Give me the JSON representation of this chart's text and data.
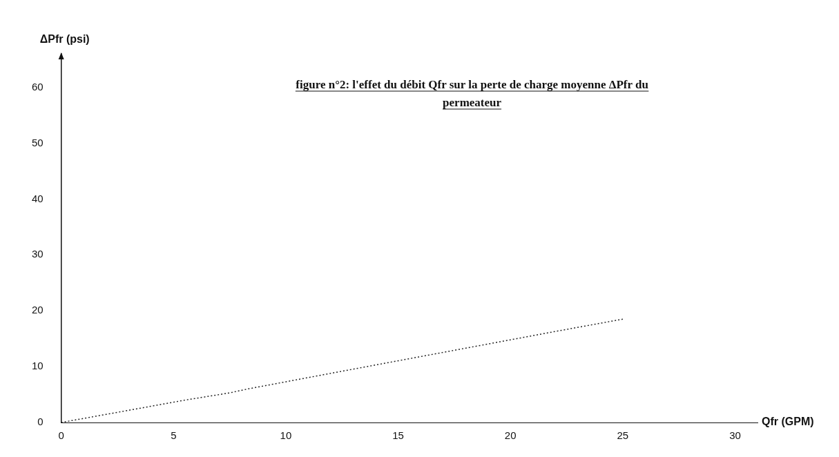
{
  "chart_data": {
    "type": "line",
    "title": "figure n°2: l'effet du débit Qfr sur la perte de charge moyenne ΔPfr du permeateur",
    "xlabel": "Qfr (GPM)",
    "ylabel": "ΔPfr (psi)",
    "x": [
      0,
      5.5,
      7.5,
      8.3,
      12,
      22,
      25
    ],
    "series": [
      {
        "color": "#222222",
        "values": [
          0,
          4,
          5.3,
          6,
          8.8,
          16.3,
          18.5
        ]
      }
    ],
    "xlim": [
      0,
      31
    ],
    "xticks": [
      0,
      5,
      10,
      15,
      20,
      25,
      30
    ],
    "ylim": [
      0,
      66
    ],
    "yticks": [
      0,
      10,
      20,
      30,
      40,
      50,
      60
    ],
    "grid": false,
    "legend": false,
    "marker": "none",
    "line_style": "dotted"
  }
}
